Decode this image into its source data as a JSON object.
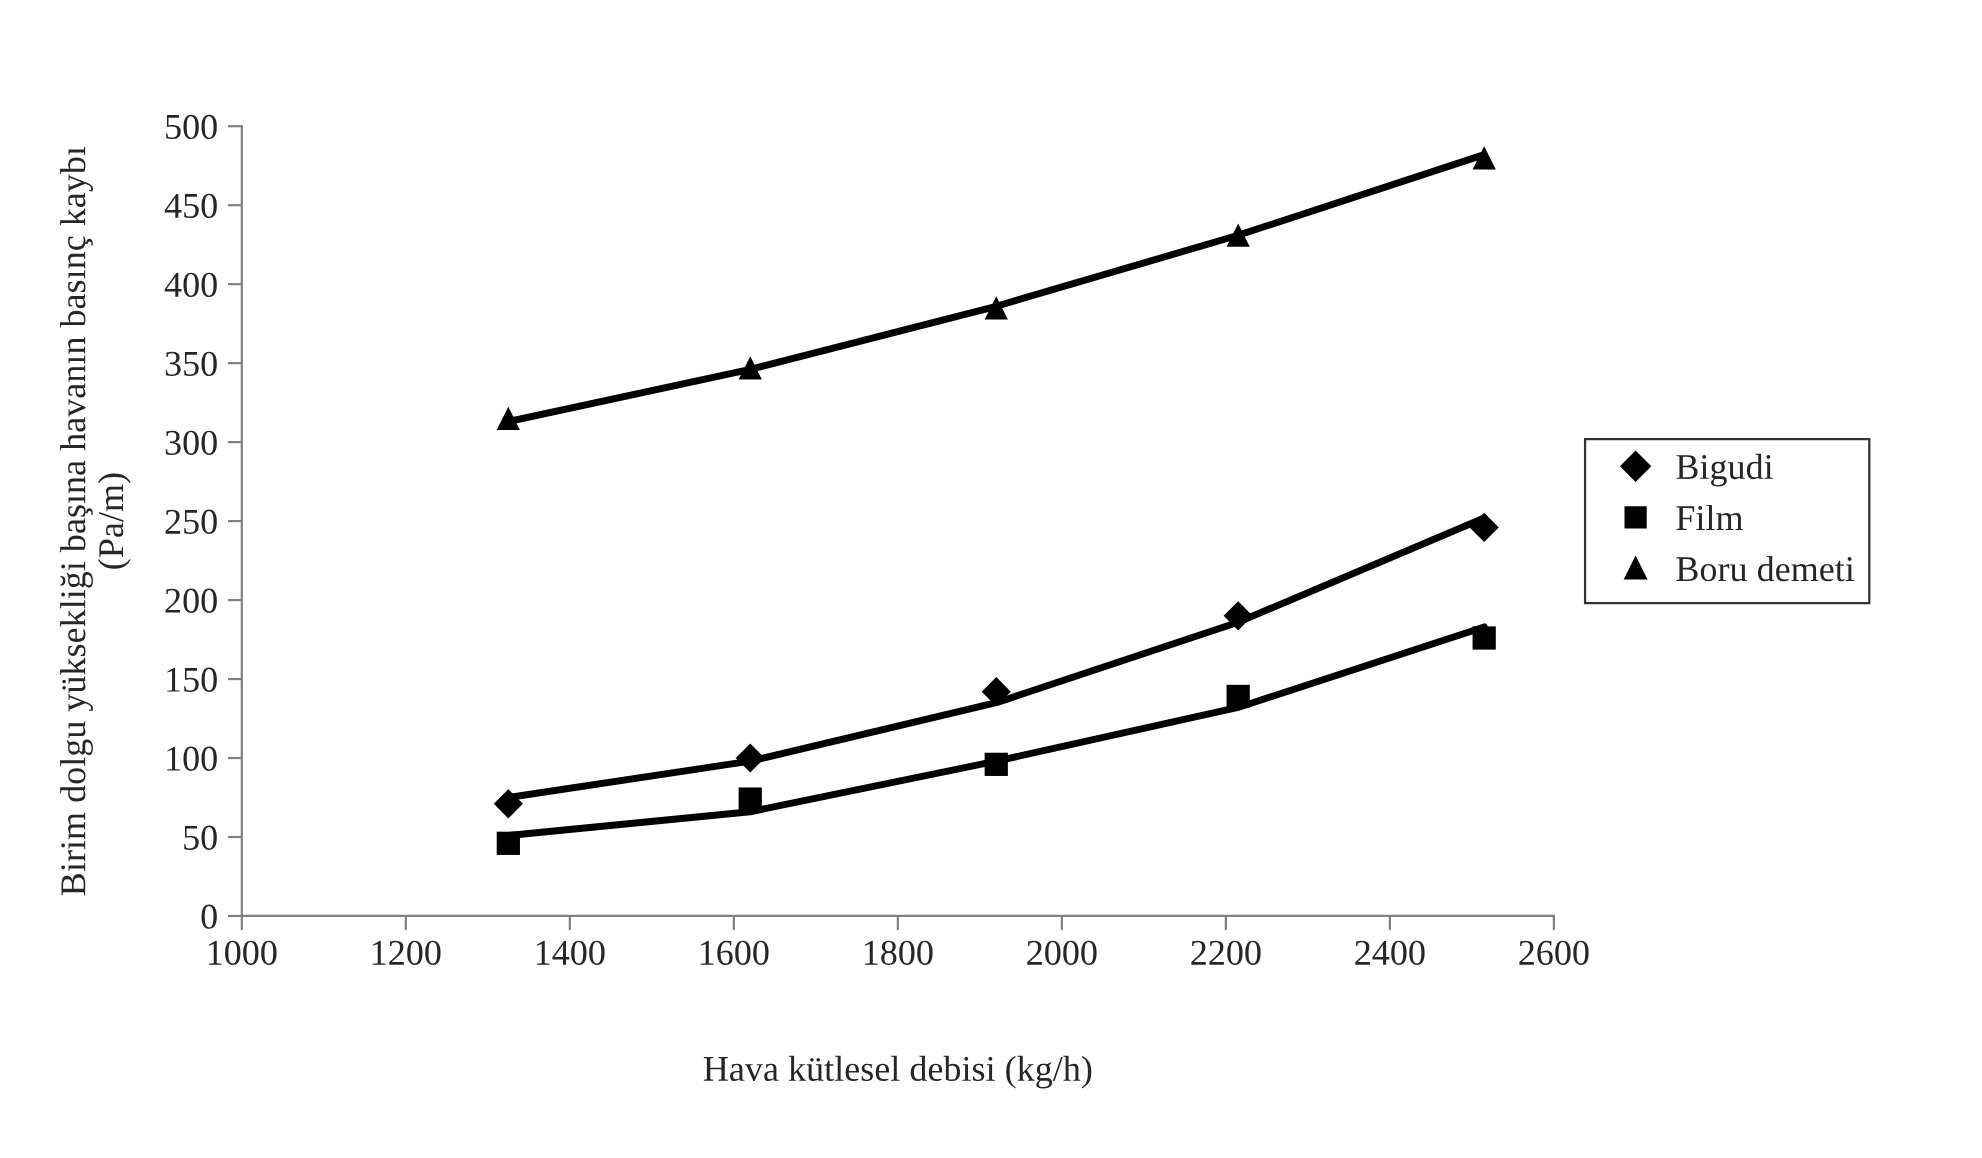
{
  "chart_data": {
    "type": "scatter",
    "xlabel": "Hava kütlesel debisi (kg/h)",
    "ylabel": "Birim dolgu yüksekliği başına havanın basınç kaybı\n(Pa/m)",
    "xlim": [
      1000,
      2600
    ],
    "xticks": [
      1000,
      1200,
      1400,
      1600,
      1800,
      2000,
      2200,
      2400,
      2600
    ],
    "ylim": [
      0,
      500
    ],
    "yticks": [
      0,
      50,
      100,
      150,
      200,
      250,
      300,
      350,
      400,
      450,
      500
    ],
    "grid": false,
    "legend": "right",
    "series": [
      {
        "name": "Bigudi",
        "marker": "diamond",
        "color": "#000000",
        "x": [
          1325,
          1620,
          1920,
          2215,
          2515
        ],
        "values": [
          71,
          100,
          142,
          190,
          246
        ]
      },
      {
        "name": "Film",
        "marker": "square",
        "color": "#000000",
        "x": [
          1325,
          1620,
          1920,
          2215,
          2515
        ],
        "values": [
          46,
          74,
          96,
          139,
          176
        ]
      },
      {
        "name": "Boru demeti",
        "marker": "triangle",
        "color": "#000000",
        "x": [
          1325,
          1620,
          1920,
          2215,
          2515
        ],
        "values": [
          315,
          347,
          385,
          431,
          480
        ]
      },
      {
        "type": "line",
        "color": "#000000",
        "x": [
          1325,
          1620,
          1920,
          2215,
          2515
        ],
        "values": [
          75,
          98,
          135,
          186,
          252
        ]
      },
      {
        "type": "line",
        "color": "#000000",
        "x": [
          1325,
          1620,
          1920,
          2215,
          2515
        ],
        "values": [
          51,
          66,
          98,
          132,
          183
        ]
      },
      {
        "type": "line",
        "color": "#000000",
        "x": [
          1325,
          1620,
          1920,
          2215,
          2515
        ],
        "values": [
          313,
          346,
          386,
          431,
          482
        ]
      }
    ]
  }
}
